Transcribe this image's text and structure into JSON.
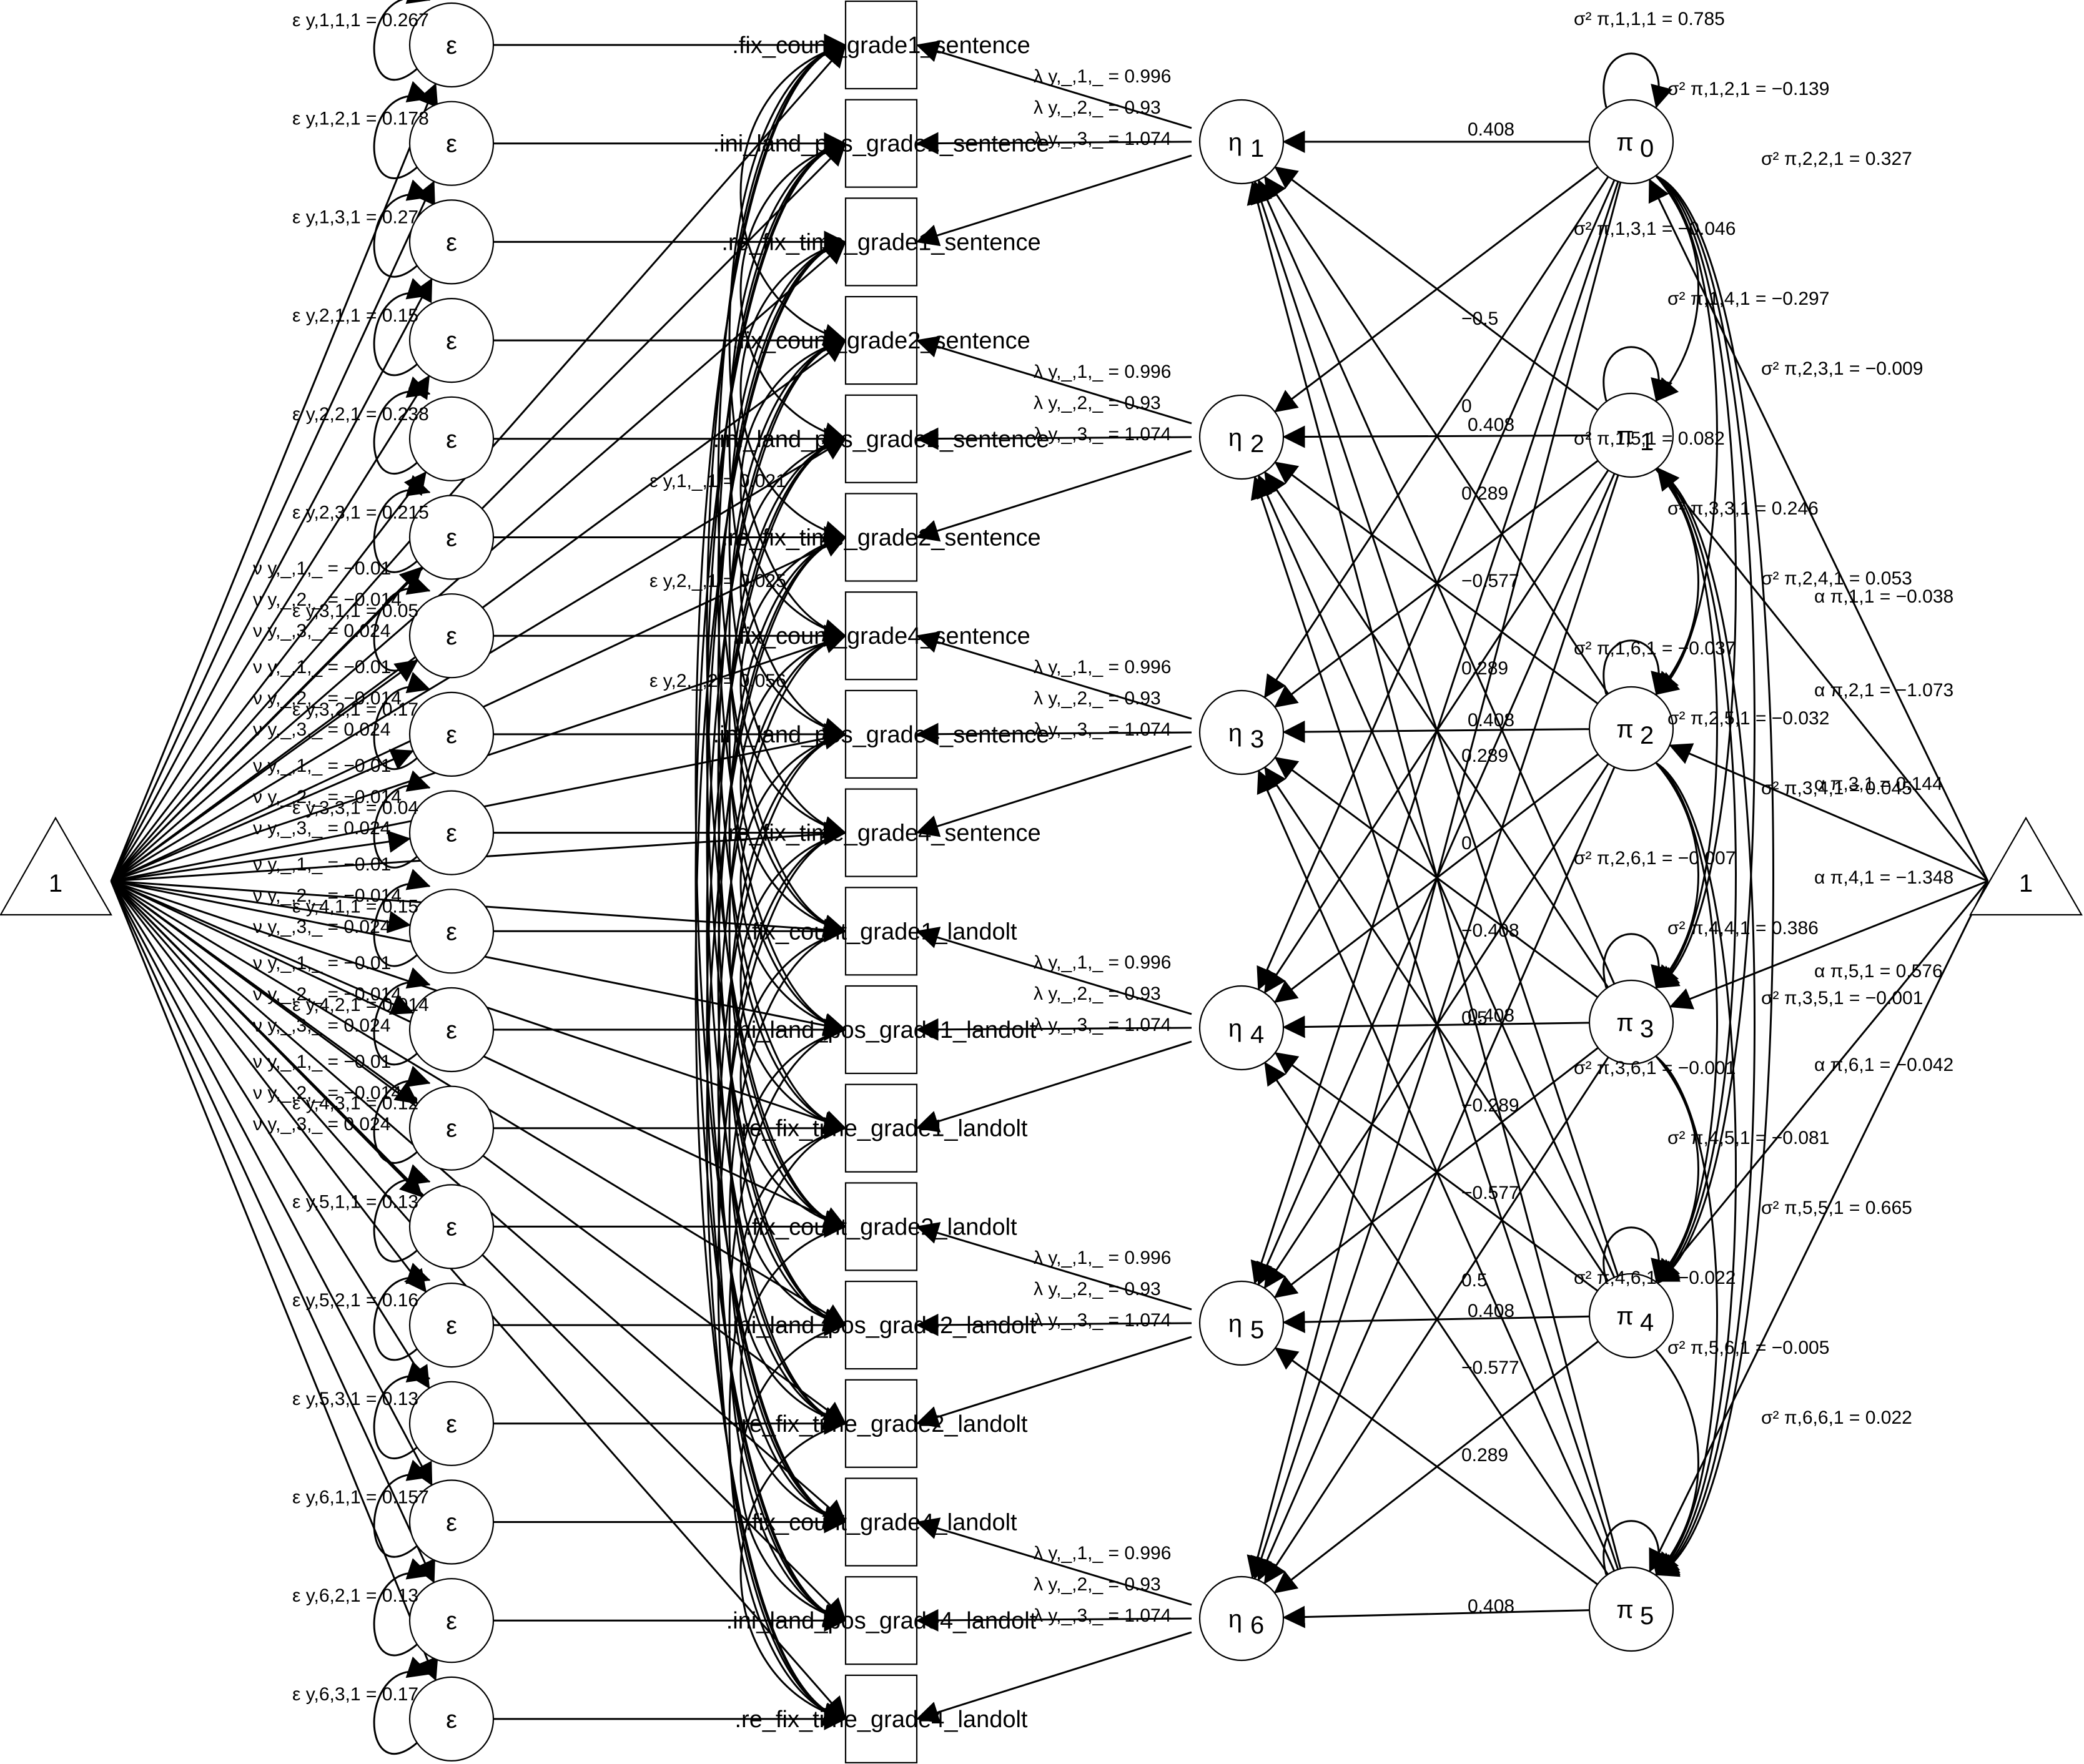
{
  "diagram": {
    "intercept_label": "1",
    "error_label": "ε",
    "observed": [
      ".fix_count_grade1_sentence",
      ".ini_land_pos_grade1_sentence",
      ".re_fix_time_grade1_sentence",
      ".fix_count_grade2_sentence",
      ".ini_land_pos_grade2_sentence",
      ".re_fix_time_grade2_sentence",
      ".fix_count_grade4_sentence",
      ".ini_land_pos_grade4_sentence",
      ".re_fix_time_grade4_sentence",
      ".fix_count_grade1_landolt",
      ".ini_land_pos_grade1_landolt",
      ".re_fix_time_grade1_landolt",
      ".fix_count_grade2_landolt",
      ".ini_land_pos_grade2_landolt",
      ".re_fix_time_grade2_landolt",
      ".fix_count_grade4_landolt",
      ".ini_land_pos_grade4_landolt",
      ".re_fix_time_grade4_landolt"
    ],
    "etas": [
      {
        "sym": "η",
        "sub": "1"
      },
      {
        "sym": "η",
        "sub": "2"
      },
      {
        "sym": "η",
        "sub": "3"
      },
      {
        "sym": "η",
        "sub": "4"
      },
      {
        "sym": "η",
        "sub": "5"
      },
      {
        "sym": "η",
        "sub": "6"
      }
    ],
    "pis": [
      {
        "sym": "π",
        "sub": "0"
      },
      {
        "sym": "π",
        "sub": "1"
      },
      {
        "sym": "π",
        "sub": "2"
      },
      {
        "sym": "π",
        "sub": "3"
      },
      {
        "sym": "π",
        "sub": "4"
      },
      {
        "sym": "π",
        "sub": "5"
      }
    ],
    "error_variance_labels": [
      "ε y,1,1,1 = 0.267",
      "ε y,1,2,1 = 0.178",
      "ε y,1,3,1 = 0.27",
      "ε y,2,1,1 = 0.15",
      "ε y,2,2,1 = 0.238",
      "ε y,2,3,1 = 0.215",
      "ε y,3,1,1 = 0.05",
      "ε y,3,2,1 = 0.17",
      "ε y,3,3,1 = 0.04",
      "ε y,4,1,1 = 0.15",
      "ε y,4,2,1 = 0.014",
      "ε y,4,3,1 = 0.12",
      "ε y,5,1,1 = 0.13",
      "ε y,5,2,1 = 0.16",
      "ε y,5,3,1 = 0.13",
      "ε y,6,1,1 = 0.157",
      "ε y,6,2,1 = 0.13",
      "ε y,6,3,1 = 0.17"
    ],
    "nu_labels": [
      "ν y,_,1,_ = −0.01",
      "ν y,_,2,_ = −0.014",
      "ν y,_,3,_ = 0.024"
    ],
    "lambda_labels": [
      "λ y,_,1,_ = 0.996",
      "λ y,_,2,_ = 0.93",
      "λ y,_,3,_ = 1.074"
    ],
    "pi_eta_loadings": [
      "0.408",
      "0.408",
      "0.408",
      "0.408",
      "0.408",
      "0.408",
      "−0.5",
      "0",
      "0.289",
      "−0.577",
      "0.289",
      "0.289",
      "0",
      "−0.408",
      "0.5",
      "−0.289",
      "−0.577",
      "0.5",
      "−0.577",
      "0.289"
    ],
    "pi_covariance_labels": [
      "σ² π,1,1,1 = 0.785",
      "σ² π,1,2,1 = −0.139",
      "σ² π,2,2,1 = 0.327",
      "σ² π,1,3,1 = −0.046",
      "σ² π,1,4,1 = −0.297",
      "σ² π,2,3,1 = −0.009",
      "σ² π,1,5,1 = 0.082",
      "σ² π,3,3,1 = 0.246",
      "σ² π,2,4,1 = 0.053",
      "σ² π,1,6,1 = −0.037",
      "σ² π,2,5,1 = −0.032",
      "σ² π,3,4,1 = 0.045",
      "σ² π,2,6,1 = −0.007",
      "σ² π,4,4,1 = 0.386",
      "σ² π,3,5,1 = −0.001",
      "σ² π,3,6,1 = −0.001",
      "σ² π,4,5,1 = −0.081",
      "σ² π,5,5,1 = 0.665",
      "σ² π,4,6,1 = −0.022",
      "σ² π,5,6,1 = −0.005",
      "σ² π,6,6,1 = 0.022"
    ],
    "pi_intercepts": [
      "α π,1,1 = −0.038",
      "α π,2,1 = −1.073",
      "α π,3,1 = 0.144",
      "α π,4,1 = −1.348",
      "α π,5,1 = 0.576",
      "α π,6,1 = −0.042"
    ],
    "factor_residual_labels": [
      "ε y,1,_,1 = 0.021",
      "ε y,2,_,1 = 0.025",
      "ε y,2,_,2 = 0.056"
    ]
  }
}
